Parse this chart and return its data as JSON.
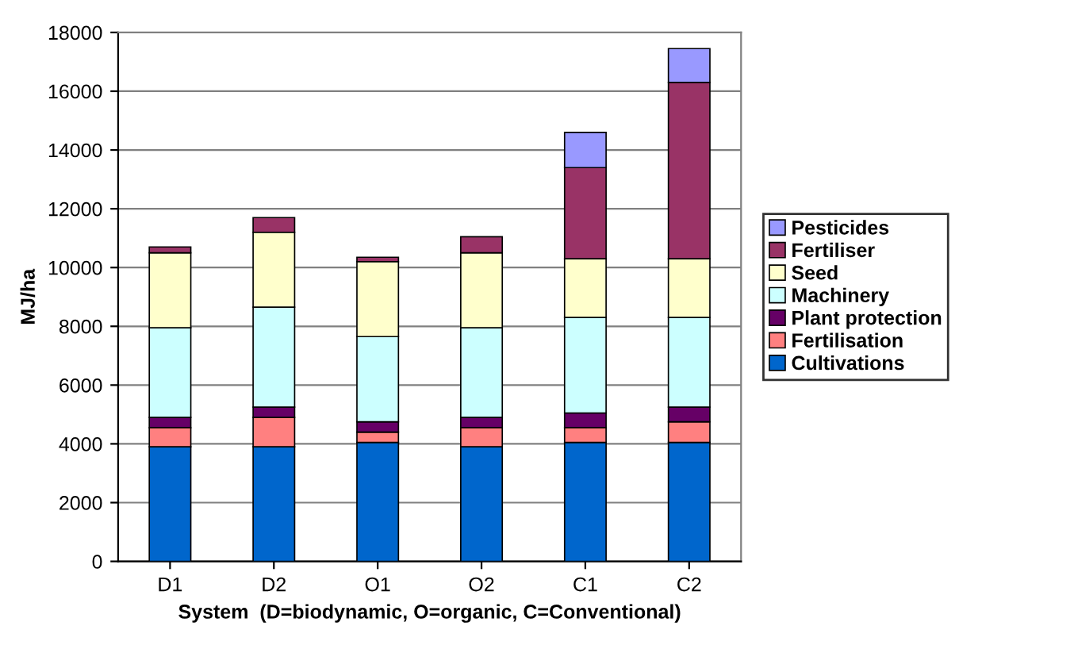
{
  "chart_data": {
    "type": "bar",
    "stacked": true,
    "xlabel": "System  (D=biodynamic, O=organic, C=Conventional)",
    "ylabel": "MJ/ha",
    "categories": [
      "D1",
      "D2",
      "O1",
      "O2",
      "C1",
      "C2"
    ],
    "series": [
      {
        "name": "Cultivations",
        "color": "#0066cc",
        "values": [
          3900,
          3900,
          4050,
          3900,
          4050,
          4050
        ]
      },
      {
        "name": "Fertilisation",
        "color": "#ff8080",
        "values": [
          650,
          1000,
          350,
          650,
          500,
          700
        ]
      },
      {
        "name": "Plant protection",
        "color": "#660066",
        "values": [
          350,
          350,
          350,
          350,
          500,
          500
        ]
      },
      {
        "name": "Machinery",
        "color": "#ccffff",
        "values": [
          3050,
          3400,
          2900,
          3050,
          3250,
          3050
        ]
      },
      {
        "name": "Seed",
        "color": "#ffffcc",
        "values": [
          2550,
          2550,
          2550,
          2550,
          2000,
          2000
        ]
      },
      {
        "name": "Fertiliser",
        "color": "#993366",
        "values": [
          200,
          500,
          150,
          550,
          3100,
          6000
        ]
      },
      {
        "name": "Pesticides",
        "color": "#9999ff",
        "values": [
          null,
          null,
          null,
          null,
          1200,
          1150
        ]
      }
    ],
    "ylim": [
      0,
      18000
    ],
    "yticks": [
      0,
      2000,
      4000,
      6000,
      8000,
      10000,
      12000,
      14000,
      16000,
      18000
    ],
    "grid": "y",
    "legend": "right"
  }
}
